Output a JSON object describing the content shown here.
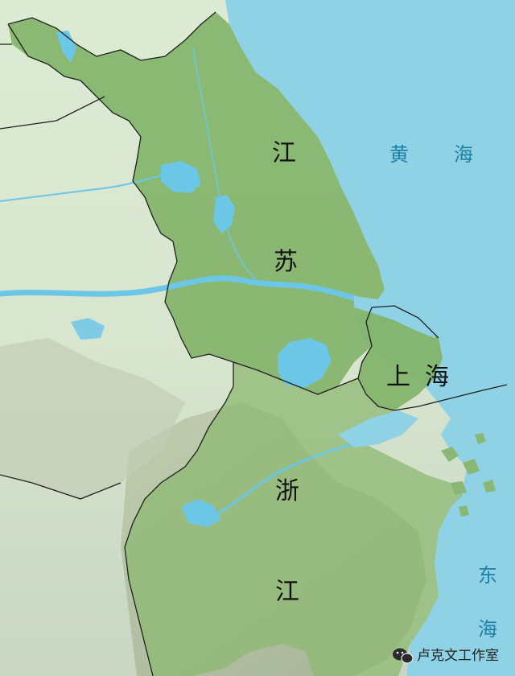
{
  "labels": {
    "jiangsu_1": "江",
    "jiangsu_2": "苏",
    "shanghai_1": "上",
    "shanghai_2": "海",
    "zhejiang_1": "浙",
    "zhejiang_2": "江",
    "yellow_sea_1": "黄",
    "yellow_sea_2": "海",
    "east_sea_1": "东",
    "east_sea_2": "海"
  },
  "watermark": {
    "text": "卢克文工作室",
    "icon": "wechat-icon"
  },
  "colors": {
    "sea": "#8fd2e6",
    "land_relief": "#d9e7cf",
    "region_green": "#83b46a",
    "water": "#6cc6e6",
    "border": "#1f1f1f"
  }
}
